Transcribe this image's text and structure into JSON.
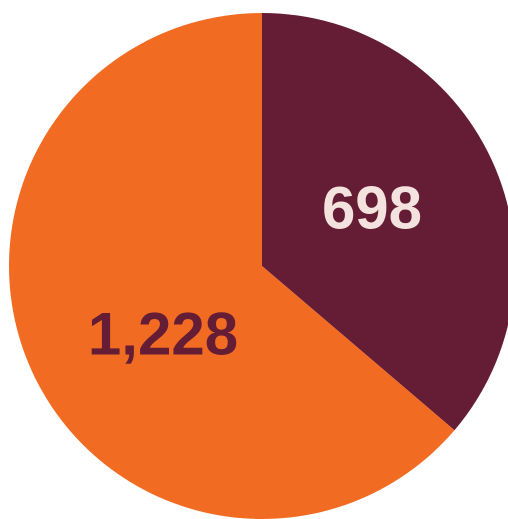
{
  "chart_data": {
    "type": "pie",
    "start_angle": "12 o'clock",
    "direction": "clockwise",
    "slices": [
      {
        "value": 698,
        "label": "698",
        "color": "#651c35",
        "label_color": "#f3e2dd"
      },
      {
        "value": 1228,
        "label": "1,228",
        "color": "#f26b23",
        "label_color": "#651c35"
      }
    ],
    "title": "",
    "legend": "none"
  }
}
